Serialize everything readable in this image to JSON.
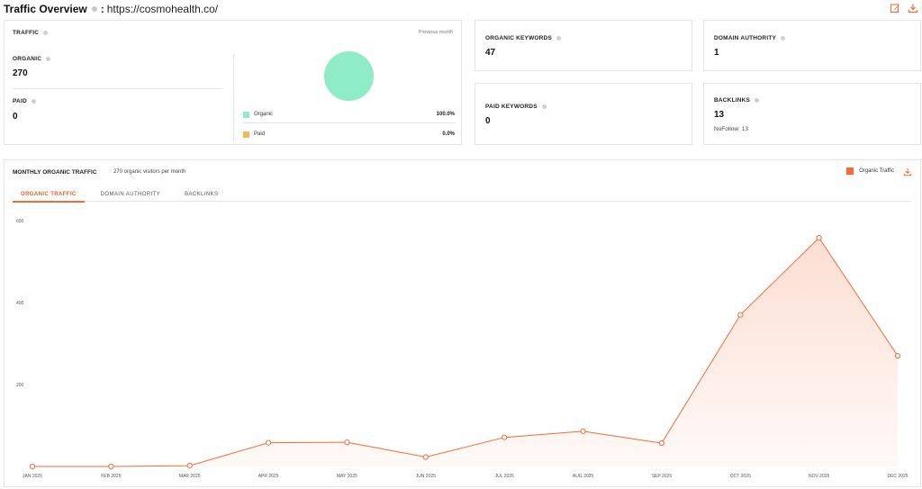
{
  "header": {
    "title": "Traffic Overview",
    "separator": ":",
    "domain": "https://cosmohealth.co/",
    "actions": [
      {
        "icon": "edit-icon"
      },
      {
        "icon": "download-icon"
      }
    ]
  },
  "traffic": {
    "label": "TRAFFIC",
    "period": "Previous month",
    "organic": {
      "label": "ORGANIC",
      "value": "270"
    },
    "paid": {
      "label": "PAID",
      "value": "0"
    },
    "legend": [
      {
        "name": "Organic",
        "percent": "100.0%",
        "color": "#8eecc6"
      },
      {
        "name": "Paid",
        "percent": "0.0%",
        "color": "#f5b856"
      }
    ]
  },
  "organic_keywords": {
    "label": "ORGANIC KEYWORDS",
    "value": "47"
  },
  "domain_authority": {
    "label": "DOMAIN AUTHORITY",
    "value": "1"
  },
  "paid_keywords": {
    "label": "PAID KEYWORDS",
    "value": "0"
  },
  "backlinks": {
    "label": "BACKLINKS",
    "value": "13",
    "nofollow": "NoFollow: 13"
  },
  "monthly": {
    "title": "MONTHLY ORGANIC TRAFFIC",
    "subtitle": "270 organic visitors per month",
    "legend": "Organic Traffic",
    "tabs": [
      {
        "label": "ORGANIC TRAFFIC",
        "active": true
      },
      {
        "label": "DOMAIN AUTHORITY",
        "active": false
      },
      {
        "label": "BACKLINKS",
        "active": false
      }
    ]
  },
  "colors": {
    "accent": "#f26b38",
    "organic": "#8eecc6",
    "paid": "#f5b856"
  },
  "chart_data": {
    "type": "area",
    "categories": [
      "JAN 2025",
      "FEB 2025",
      "MAR 2025",
      "APR 2025",
      "MAY 2025",
      "JUN 2025",
      "JUL 2025",
      "AUG 2025",
      "SEP 2025",
      "OCT 2025",
      "NOV 2025",
      "DEC 2025"
    ],
    "series": [
      {
        "name": "Organic Traffic",
        "values": [
          0,
          0,
          2,
          58,
          59,
          23,
          71,
          86,
          57,
          370,
          558,
          270
        ],
        "color": "#f26b38"
      }
    ],
    "yticks": [
      0,
      200,
      400,
      600
    ],
    "ytick_labels": [
      "",
      "200",
      "400",
      "600"
    ],
    "ylim": [
      0,
      600
    ],
    "grid": false,
    "legend": "top-right"
  }
}
